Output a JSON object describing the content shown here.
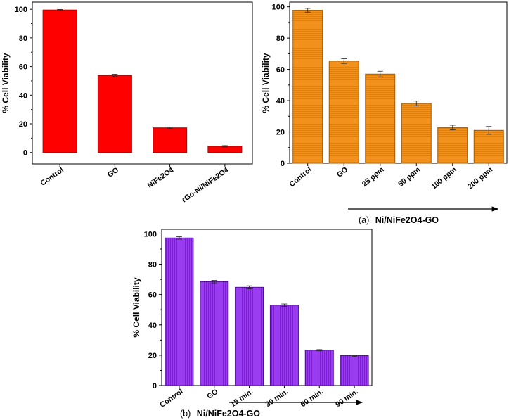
{
  "chart_data": [
    {
      "id": "left",
      "type": "bar",
      "categories": [
        "Control",
        "GO",
        "NiFe2O4",
        "rGo-Ni/NiFe2O4"
      ],
      "values": [
        99.5,
        53.8,
        17.2,
        4.3
      ],
      "errors": [
        0.4,
        0.8,
        0.5,
        0.5
      ],
      "ylabel": "% Cell Viability",
      "ylim": [
        -8,
        105
      ],
      "yticks": [
        0,
        20,
        40,
        60,
        80,
        100
      ],
      "color": "#ff0000",
      "caption_prefix": "",
      "caption": ""
    },
    {
      "id": "a",
      "type": "bar",
      "categories": [
        "Control",
        "GO",
        "25 ppm",
        "50 ppm",
        "100 ppm",
        "200 ppm"
      ],
      "values": [
        97.8,
        65.3,
        57.0,
        38.2,
        22.8,
        21.0
      ],
      "errors": [
        1.2,
        1.5,
        1.8,
        1.5,
        1.5,
        2.5
      ],
      "ylabel": "% Cell Viability",
      "ylim": [
        0,
        103
      ],
      "yticks": [
        0,
        20,
        40,
        60,
        80,
        100
      ],
      "color": "#f2921c",
      "caption_prefix": "(a)",
      "caption": "Ni/NiFe2O4-GO"
    },
    {
      "id": "b",
      "type": "bar",
      "categories": [
        "Control",
        "GO",
        "15 min.",
        "30 min.",
        "60 min.",
        "90 min."
      ],
      "values": [
        97.3,
        68.5,
        64.8,
        53.0,
        23.3,
        19.7
      ],
      "errors": [
        0.8,
        0.8,
        1.0,
        0.8,
        0.4,
        0.4
      ],
      "ylabel": "% Cell Viability",
      "ylim": [
        0,
        103
      ],
      "yticks": [
        0,
        20,
        40,
        60,
        80,
        100
      ],
      "color": "#8a2be2",
      "caption_prefix": "(b)",
      "caption": "Ni/NiFe2O4-GO"
    }
  ]
}
